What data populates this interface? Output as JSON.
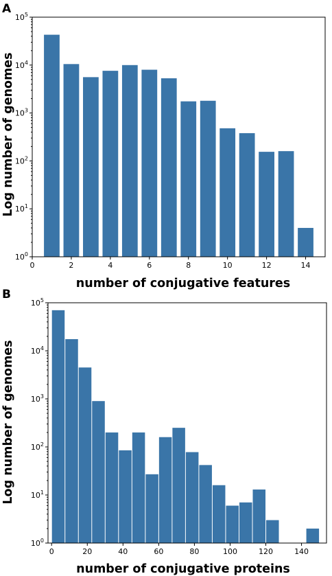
{
  "chart_data": [
    {
      "panel": "A",
      "type": "bar",
      "yscale": "log",
      "xlabel": "number of conjugative features",
      "ylabel": "Log number of genomes",
      "xlim": [
        0,
        15
      ],
      "ylim": [
        1,
        100000
      ],
      "xticks": [
        0,
        2,
        4,
        6,
        8,
        10,
        12,
        14
      ],
      "yticks": [
        {
          "base": "10",
          "exp": "0",
          "value": 1
        },
        {
          "base": "10",
          "exp": "1",
          "value": 10
        },
        {
          "base": "10",
          "exp": "2",
          "value": 100
        },
        {
          "base": "10",
          "exp": "3",
          "value": 1000
        },
        {
          "base": "10",
          "exp": "4",
          "value": 10000
        },
        {
          "base": "10",
          "exp": "5",
          "value": 100000
        }
      ],
      "bar_width": 0.8,
      "x": [
        1,
        2,
        3,
        4,
        5,
        6,
        7,
        8,
        9,
        10,
        11,
        12,
        13,
        14
      ],
      "values": [
        43000,
        10500,
        5600,
        7600,
        10000,
        8000,
        5300,
        1750,
        1800,
        480,
        380,
        155,
        160,
        4
      ]
    },
    {
      "panel": "B",
      "type": "bar",
      "yscale": "log",
      "xlabel": "number of conjugative proteins",
      "ylabel": "Log number of genomes",
      "xlim": [
        -2,
        154
      ],
      "ylim": [
        1,
        100000
      ],
      "xticks": [
        0,
        20,
        40,
        60,
        80,
        100,
        120,
        140
      ],
      "yticks": [
        {
          "base": "10",
          "exp": "0",
          "value": 1
        },
        {
          "base": "10",
          "exp": "1",
          "value": 10
        },
        {
          "base": "10",
          "exp": "2",
          "value": 100
        },
        {
          "base": "10",
          "exp": "3",
          "value": 1000
        },
        {
          "base": "10",
          "exp": "4",
          "value": 10000
        },
        {
          "base": "10",
          "exp": "5",
          "value": 100000
        }
      ],
      "bin_width": 7.5,
      "bins_start": [
        0,
        7.5,
        15,
        22.5,
        30,
        37.5,
        45,
        52.5,
        60,
        67.5,
        75,
        82.5,
        90,
        97.5,
        105,
        112.5,
        120,
        127.5,
        135,
        142.5
      ],
      "values": [
        70000,
        17500,
        4500,
        900,
        200,
        85,
        200,
        27,
        160,
        250,
        78,
        42,
        16,
        6,
        7,
        13,
        3,
        1,
        1,
        2
      ]
    }
  ]
}
